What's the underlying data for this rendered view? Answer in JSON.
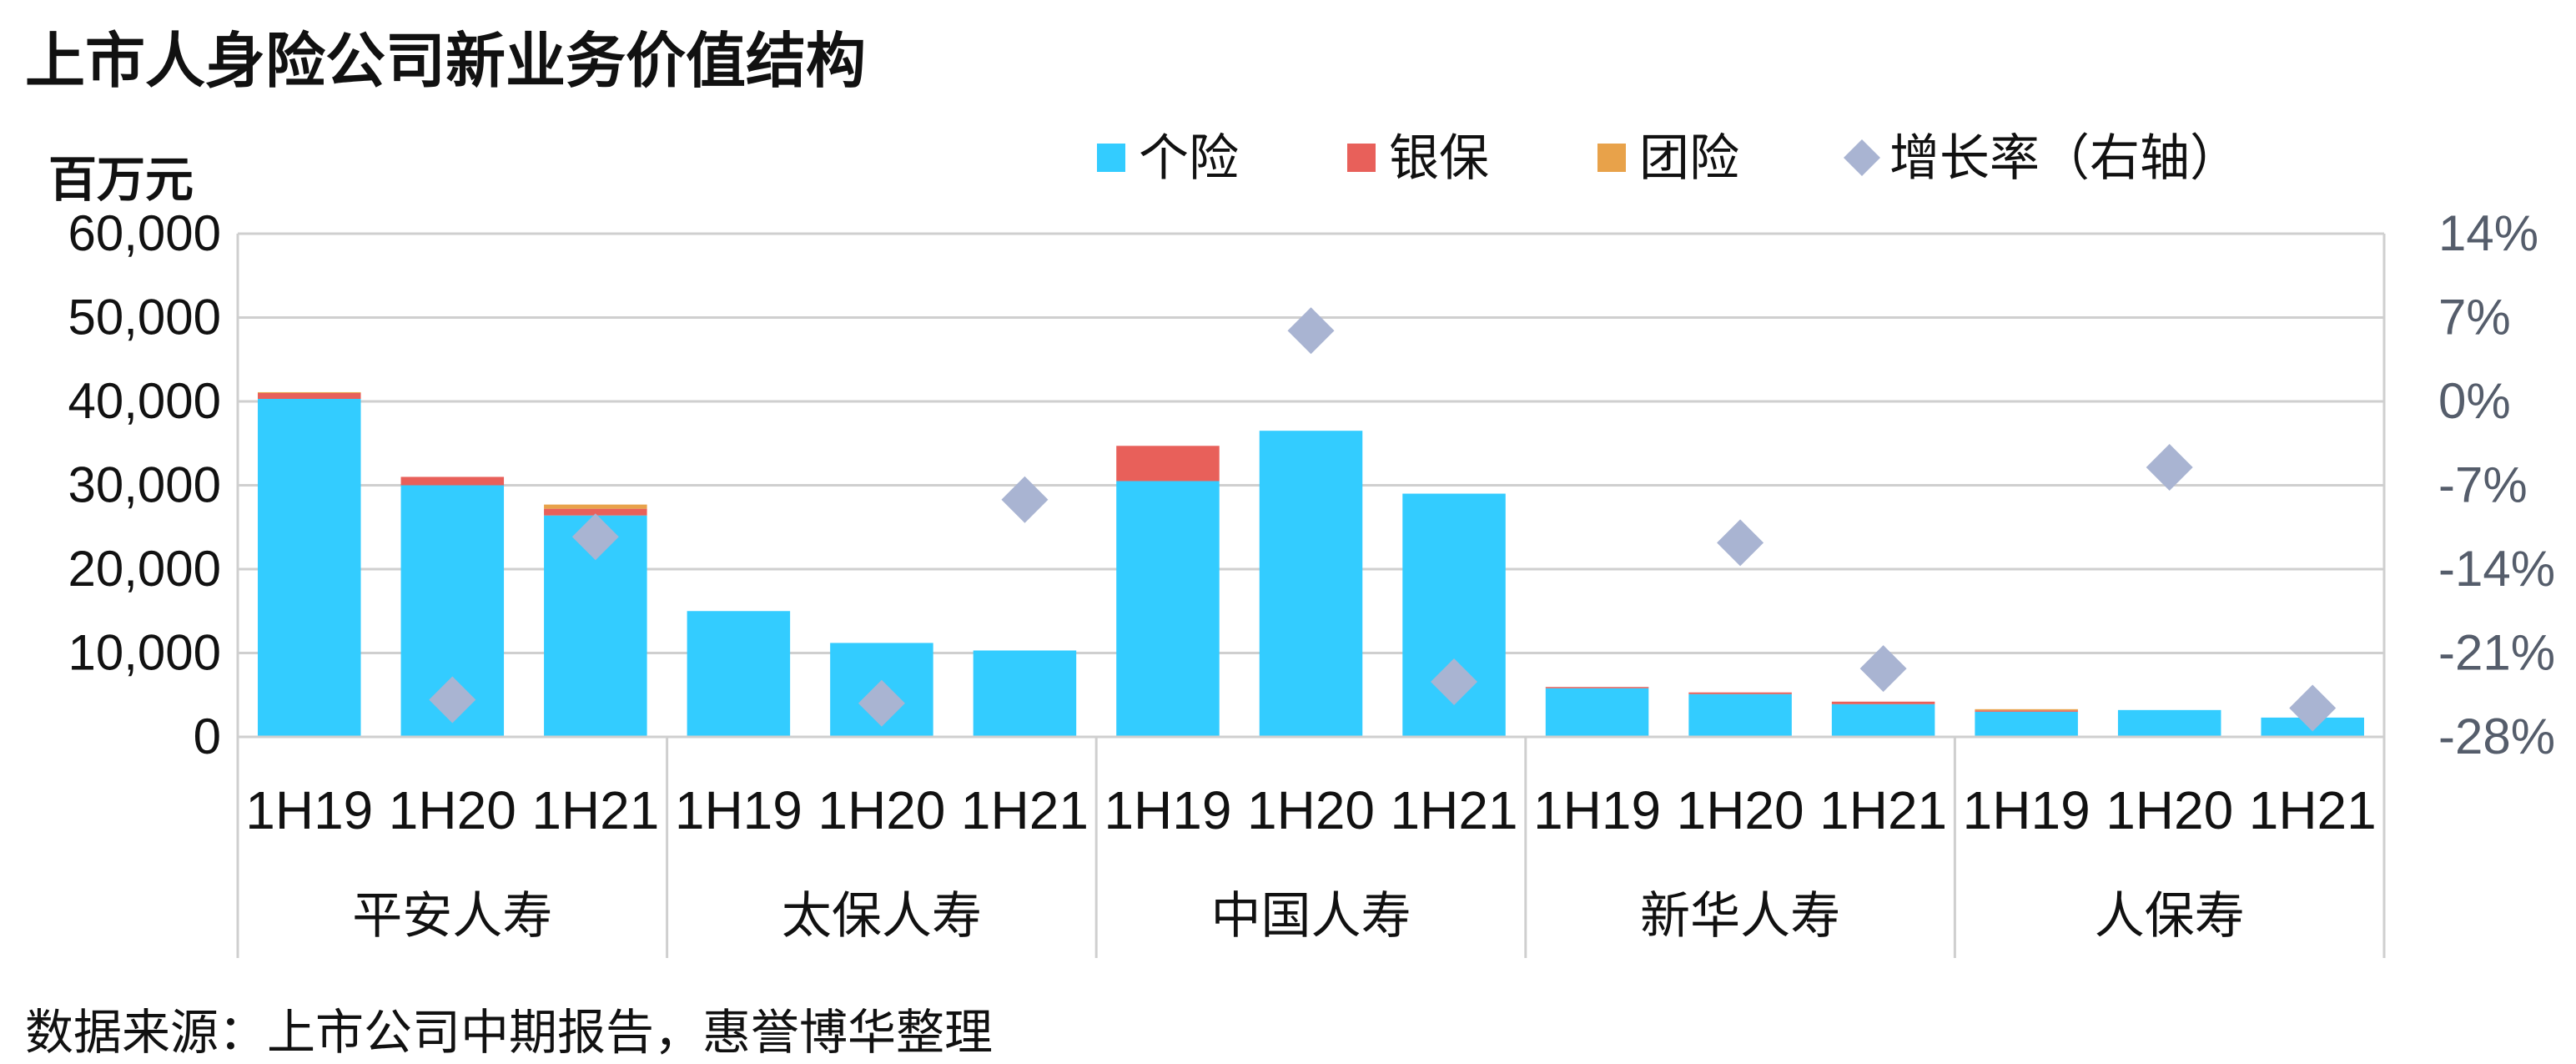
{
  "title": "上市人身险公司新业务价值结构",
  "source": "数据来源：上市公司中期报告，惠誉博华整理",
  "chart_data": {
    "type": "bar",
    "stacked": true,
    "title": "上市人身险公司新业务价值结构",
    "ylabel": "百万元",
    "ylim": [
      0,
      60000
    ],
    "yticks": [
      "60,000",
      "50,000",
      "40,000",
      "30,000",
      "20,000",
      "10,000",
      "0"
    ],
    "y2lim": [
      -28,
      14
    ],
    "y2ticks": [
      "14%",
      "7%",
      "0%",
      "-7%",
      "-14%",
      "-21%",
      "-28%"
    ],
    "grid": true,
    "legend_position": "top-right",
    "groups": [
      "平安人寿",
      "太保人寿",
      "中国人寿",
      "新华人寿",
      "人保寿"
    ],
    "periods": [
      "1H19",
      "1H20",
      "1H21"
    ],
    "categories": [
      "1H19",
      "1H20",
      "1H21",
      "1H19",
      "1H20",
      "1H21",
      "1H19",
      "1H20",
      "1H21",
      "1H19",
      "1H20",
      "1H21",
      "1H19",
      "1H20",
      "1H21"
    ],
    "series": [
      {
        "name": "个险",
        "color": "#33ccff",
        "values": [
          40300,
          30000,
          26400,
          15000,
          11200,
          10300,
          30500,
          36500,
          29000,
          5800,
          5100,
          3900,
          3000,
          3200,
          2300
        ]
      },
      {
        "name": "银保",
        "color": "#e8605a",
        "values": [
          700,
          1000,
          800,
          0,
          0,
          0,
          4200,
          0,
          0,
          150,
          200,
          300,
          150,
          0,
          0
        ]
      },
      {
        "name": "团险",
        "color": "#e8a24a",
        "values": [
          100,
          0,
          500,
          0,
          0,
          0,
          0,
          0,
          0,
          0,
          0,
          0,
          150,
          0,
          0
        ]
      }
    ],
    "growth": {
      "name": "增长率（右轴）",
      "color": "#a9b4d2",
      "values": [
        null,
        -24.9,
        -11.3,
        null,
        -25.2,
        -8.2,
        null,
        5.9,
        -23.4,
        null,
        -11.8,
        -22.3,
        null,
        -5.5,
        -25.6
      ]
    }
  }
}
